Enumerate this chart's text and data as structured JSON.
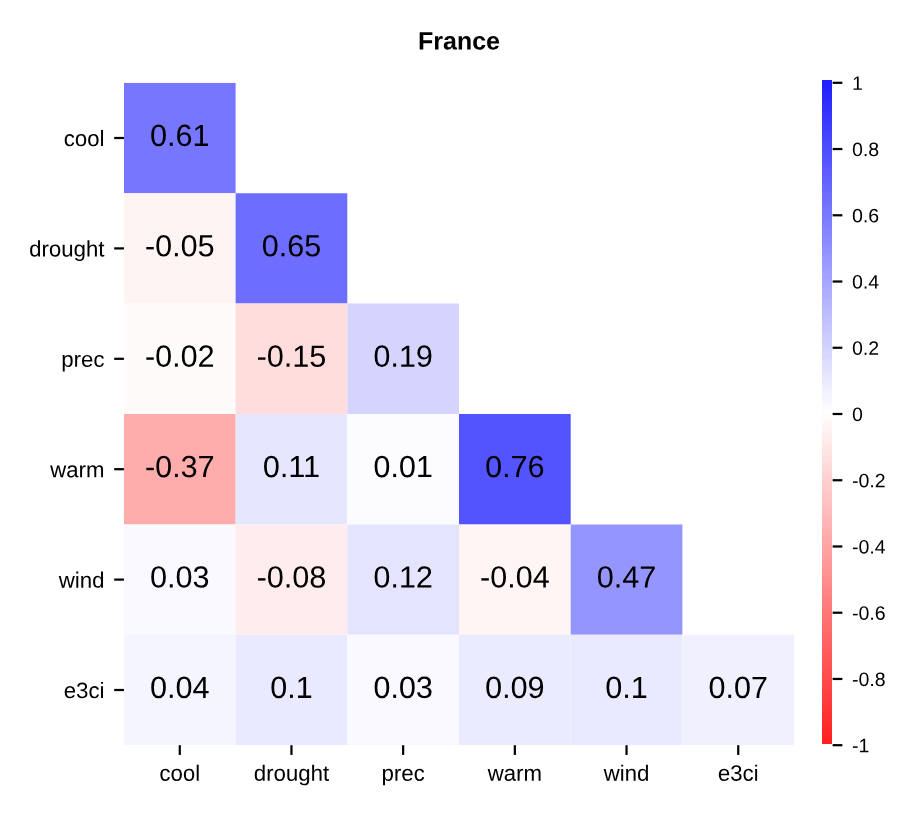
{
  "chart_data": {
    "type": "heatmap",
    "title": "France",
    "categories": [
      "cool",
      "drought",
      "prec",
      "warm",
      "wind",
      "e3ci"
    ],
    "y_categories": [
      "cool",
      "drought",
      "prec",
      "warm",
      "wind",
      "e3ci"
    ],
    "cells": [
      [
        0.61,
        null,
        null,
        null,
        null,
        null
      ],
      [
        -0.05,
        0.65,
        null,
        null,
        null,
        null
      ],
      [
        -0.02,
        -0.15,
        0.19,
        null,
        null,
        null
      ],
      [
        -0.37,
        0.11,
        0.01,
        0.76,
        null,
        null
      ],
      [
        0.03,
        -0.08,
        0.12,
        -0.04,
        0.47,
        null
      ],
      [
        0.04,
        0.1,
        0.03,
        0.09,
        0.1,
        0.07
      ]
    ],
    "clim": [
      -1,
      1
    ],
    "cticks": [
      -1,
      -0.8,
      -0.6,
      -0.4,
      -0.2,
      0,
      0.2,
      0.4,
      0.6,
      0.8,
      1
    ],
    "data_labels": true
  }
}
